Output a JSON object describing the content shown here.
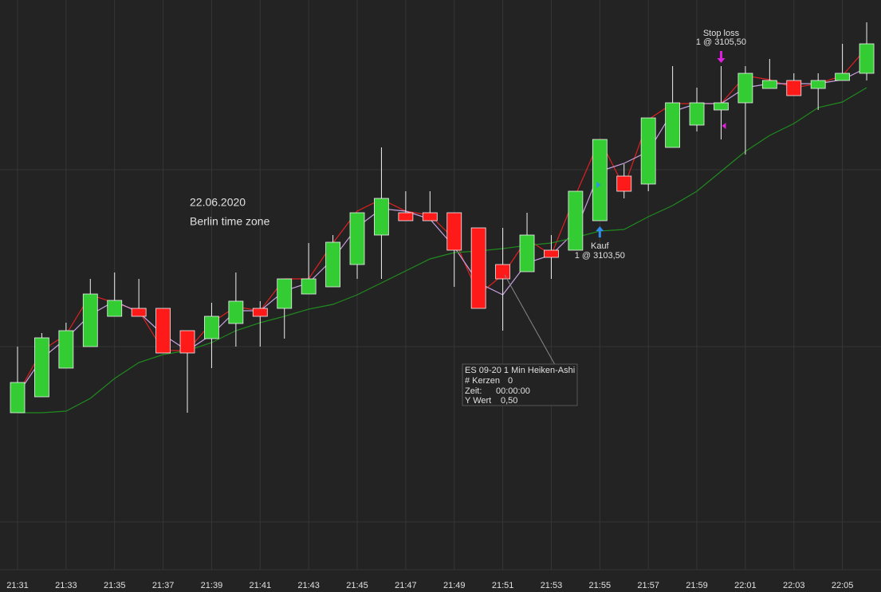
{
  "chart_data": {
    "type": "candlestick",
    "categories": [
      "21:31",
      null,
      "21:33",
      null,
      "21:35",
      null,
      "21:37",
      null,
      "21:39",
      null,
      "21:41",
      null,
      "21:43",
      null,
      "21:45",
      null,
      "21:47",
      null,
      "21:49",
      null,
      "21:51",
      null,
      "21:53",
      null,
      "21:55",
      null,
      "21:57",
      null,
      "21:59",
      null,
      "22:01",
      null,
      "22:03",
      null,
      "22:05",
      null
    ],
    "open": [
      3098.94,
      3099.34,
      3100.06,
      3100.6,
      3101.36,
      3101.56,
      3101.56,
      3101.0,
      3100.8,
      3101.18,
      3101.56,
      3101.56,
      3101.92,
      3102.1,
      3102.66,
      3103.4,
      3103.96,
      3103.96,
      3103.96,
      3103.58,
      3102.66,
      3102.48,
      3103.02,
      3103.02,
      3103.76,
      3104.88,
      3104.68,
      3105.6,
      3106.16,
      3106.54,
      3106.72,
      3107.08,
      3107.28,
      3107.08,
      3107.28,
      3107.46
    ],
    "high": [
      3100.6,
      3100.94,
      3101.2,
      3102.3,
      3102.46,
      3102.3,
      3101.56,
      3101.0,
      3101.7,
      3102.46,
      3101.74,
      3102.3,
      3103.2,
      3103.4,
      3103.96,
      3105.6,
      3104.5,
      3104.5,
      3103.96,
      3103.58,
      3103.58,
      3103.96,
      3103.4,
      3104.5,
      3105.8,
      3105.18,
      3106.34,
      3107.64,
      3107.1,
      3107.64,
      3107.64,
      3107.82,
      3107.46,
      3107.46,
      3108.2,
      3108.74
    ],
    "low": [
      3098.94,
      3099.34,
      3100.06,
      3100.6,
      3101.36,
      3101.36,
      3100.44,
      3098.94,
      3100.06,
      3100.6,
      3100.6,
      3100.8,
      3101.92,
      3102.1,
      3102.3,
      3102.3,
      3103.76,
      3103.76,
      3102.1,
      3101.56,
      3101.0,
      3102.48,
      3102.3,
      3103.02,
      3103.76,
      3104.32,
      3104.5,
      3105.6,
      3106.0,
      3105.8,
      3105.42,
      3107.08,
      3106.9,
      3106.54,
      3107.28,
      3107.28
    ],
    "close": [
      3099.7,
      3100.82,
      3101.0,
      3101.92,
      3101.76,
      3101.36,
      3100.44,
      3100.44,
      3101.36,
      3101.74,
      3101.36,
      3102.3,
      3102.3,
      3103.22,
      3103.96,
      3104.32,
      3103.76,
      3103.76,
      3103.02,
      3101.56,
      3102.3,
      3103.4,
      3102.84,
      3104.5,
      3105.8,
      3104.5,
      3106.34,
      3106.72,
      3106.72,
      3106.72,
      3107.46,
      3107.28,
      3106.9,
      3107.28,
      3107.46,
      3108.2
    ],
    "up_color": "#33cc33",
    "down_color": "#ff1a1a",
    "ylim": [
      3095,
      3109.3
    ],
    "ygrid": [
      3105.04,
      3100.6,
      3096.2
    ],
    "lines": [
      {
        "color": "#e02020",
        "values": [
          3099.4,
          3100.5,
          3100.9,
          3101.9,
          3101.7,
          3101.5,
          3100.5,
          3100.5,
          3101.2,
          3101.6,
          3101.5,
          3102.3,
          3102.3,
          3103.2,
          3104.0,
          3104.3,
          3104.0,
          3103.9,
          3103.3,
          3101.9,
          3102.4,
          3103.3,
          3102.9,
          3104.4,
          3105.8,
          3104.6,
          3106.3,
          3106.7,
          3106.7,
          3106.7,
          3107.4,
          3107.3,
          3107.1,
          3107.2,
          3107.4,
          3108.1
        ]
      },
      {
        "color": "#c8a0e0",
        "values": [
          3099.4,
          3100.3,
          3100.8,
          3101.4,
          3101.74,
          3101.46,
          3100.9,
          3100.5,
          3100.9,
          3101.5,
          3101.5,
          3102.0,
          3102.2,
          3102.8,
          3103.6,
          3104.06,
          3104.0,
          3103.8,
          3103.1,
          3102.2,
          3101.9,
          3102.7,
          3102.9,
          3103.5,
          3105.0,
          3105.2,
          3105.5,
          3106.5,
          3106.7,
          3106.7,
          3107.1,
          3107.2,
          3107.2,
          3107.2,
          3107.3,
          3107.6
        ]
      },
      {
        "color": "#1f8a1f",
        "values": [
          3098.94,
          3098.94,
          3098.98,
          3099.3,
          3099.8,
          3100.2,
          3100.4,
          3100.5,
          3100.7,
          3101.0,
          3101.2,
          3101.36,
          3101.54,
          3101.66,
          3101.9,
          3102.2,
          3102.5,
          3102.8,
          3102.96,
          3103.0,
          3103.06,
          3103.14,
          3103.2,
          3103.34,
          3103.5,
          3103.54,
          3103.86,
          3104.14,
          3104.5,
          3105.0,
          3105.5,
          3105.9,
          3106.2,
          3106.6,
          3106.74,
          3107.1
        ]
      }
    ],
    "date": "22.06.2020",
    "timezone": "Berlin time zone",
    "buy": {
      "label": "Kauf",
      "detail": "1 @ 3103,50",
      "index": 24
    },
    "stop": {
      "label": "Stop loss",
      "detail": "1 @ 3105,50",
      "index": 29
    },
    "tooltip": {
      "title": "ES 09-20 1 Min Heiken-Ashi",
      "rows": [
        [
          "# Kerzen",
          "0"
        ],
        [
          "Zeit:",
          "00:00:00"
        ],
        [
          "Y Wert",
          "0,50"
        ]
      ]
    }
  }
}
